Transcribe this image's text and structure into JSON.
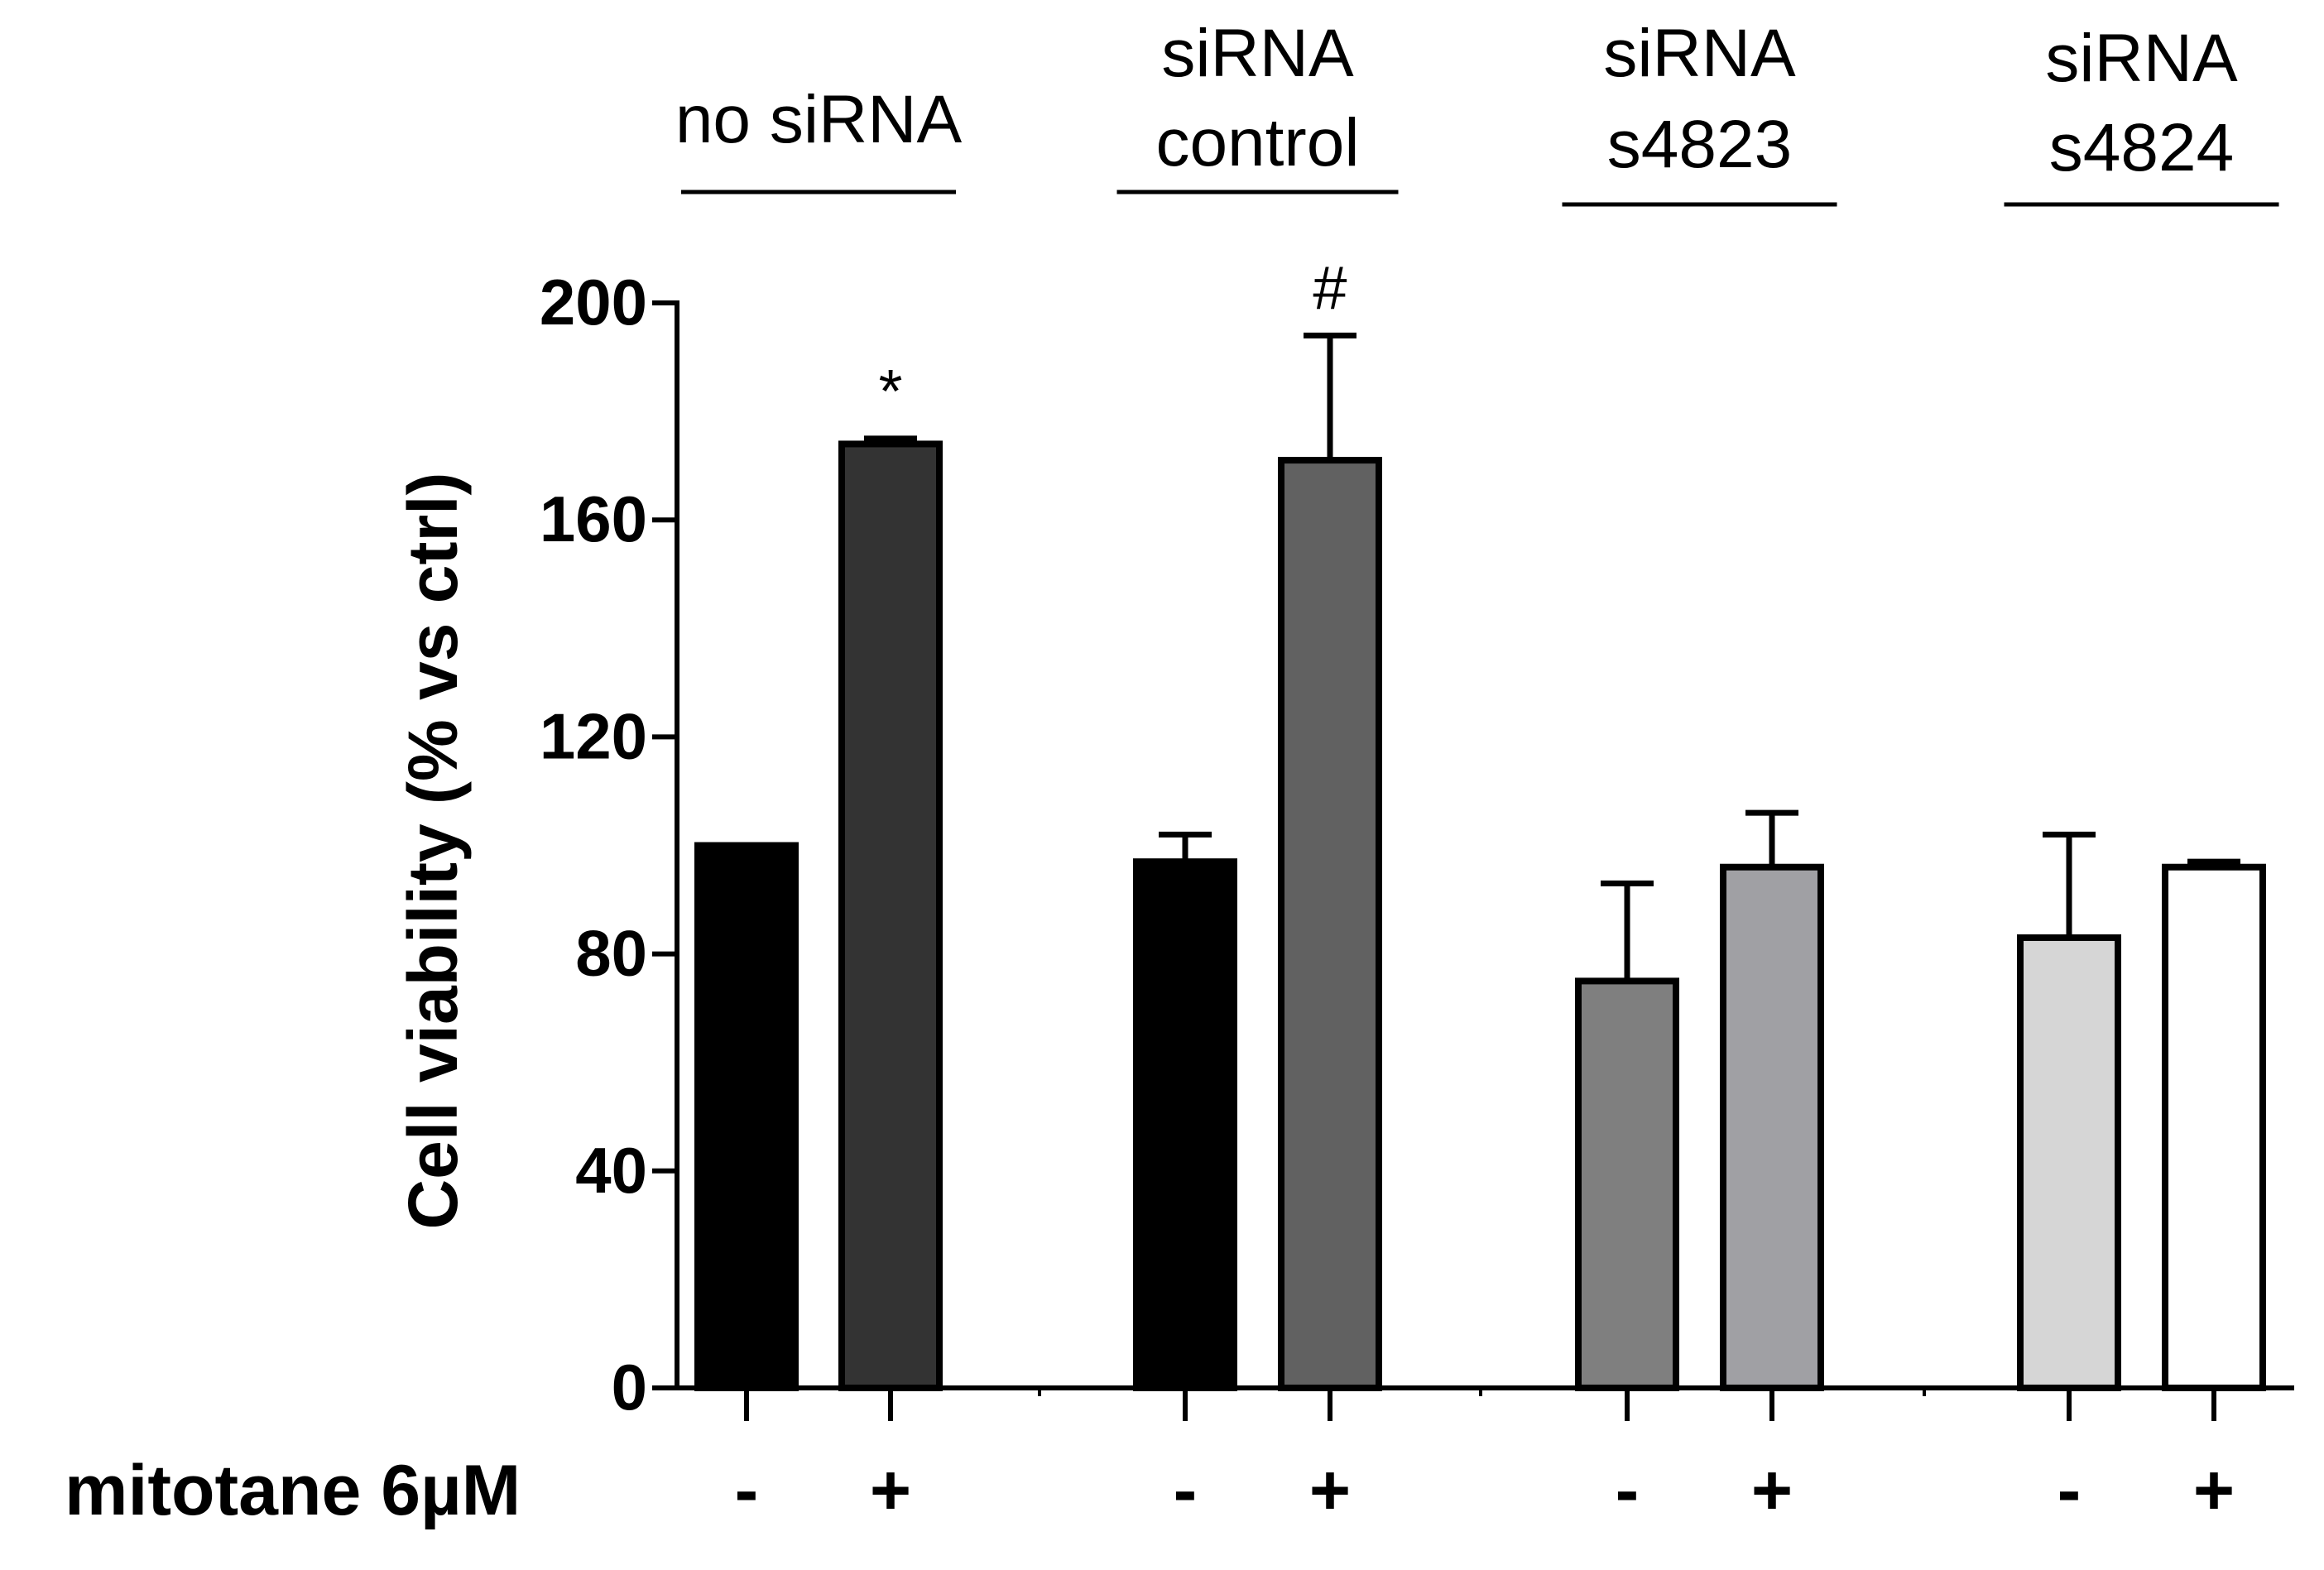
{
  "chart_data": {
    "type": "bar",
    "ylabel": "Cell viability (% vs ctrl)",
    "ylim": [
      0,
      200
    ],
    "yticks": [
      0,
      40,
      80,
      120,
      160,
      200
    ],
    "treatment_label": "mitotane 6µM",
    "groups": [
      {
        "label": [
          "no siRNA"
        ]
      },
      {
        "label": [
          "siRNA",
          "control"
        ]
      },
      {
        "label": [
          "siRNA",
          "s4823"
        ]
      },
      {
        "label": [
          "siRNA",
          "s4824"
        ]
      }
    ],
    "bars": [
      {
        "group": 0,
        "treatment": "-",
        "value": 100,
        "error": 0,
        "fill": "#000000",
        "annotation": ""
      },
      {
        "group": 0,
        "treatment": "+",
        "value": 174,
        "error": 1,
        "fill": "#333333",
        "annotation": "*"
      },
      {
        "group": 1,
        "treatment": "-",
        "value": 97,
        "error": 5,
        "fill": "#000000",
        "annotation": ""
      },
      {
        "group": 1,
        "treatment": "+",
        "value": 171,
        "error": 23,
        "fill": "#616161",
        "annotation": "#"
      },
      {
        "group": 2,
        "treatment": "-",
        "value": 75,
        "error": 18,
        "fill": "#7f7f7f",
        "annotation": ""
      },
      {
        "group": 2,
        "treatment": "+",
        "value": 96,
        "error": 10,
        "fill": "#a0a0a4",
        "annotation": ""
      },
      {
        "group": 3,
        "treatment": "-",
        "value": 83,
        "error": 19,
        "fill": "#d6d6d6",
        "annotation": ""
      },
      {
        "group": 3,
        "treatment": "+",
        "value": 96,
        "error": 1,
        "fill": "#ffffff",
        "annotation": ""
      }
    ]
  }
}
